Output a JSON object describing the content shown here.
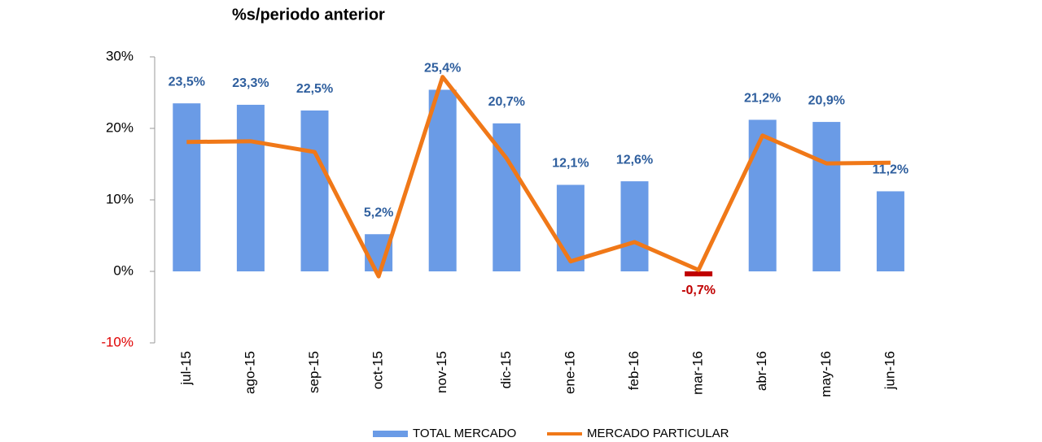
{
  "chart_data": {
    "type": "bar",
    "title": "%s/periodo anterior",
    "categories": [
      "jul-15",
      "ago-15",
      "sep-15",
      "oct-15",
      "nov-15",
      "dic-15",
      "ene-16",
      "feb-16",
      "mar-16",
      "abr-16",
      "may-16",
      "jun-16"
    ],
    "series": [
      {
        "name": "TOTAL MERCADO",
        "type": "bar",
        "color": "#6a9be6",
        "negative_color": "#c00000",
        "values": [
          23.5,
          23.3,
          22.5,
          5.2,
          25.4,
          20.7,
          12.1,
          12.6,
          -0.7,
          21.2,
          20.9,
          11.2
        ],
        "value_labels": [
          "23,5%",
          "23,3%",
          "22,5%",
          "5,2%",
          "25,4%",
          "20,7%",
          "12,1%",
          "12,6%",
          "-0,7%",
          "21,2%",
          "20,9%",
          "11,2%"
        ]
      },
      {
        "name": "MERCADO PARTICULAR",
        "type": "line",
        "color": "#f07818",
        "values": [
          18.1,
          18.2,
          16.7,
          -0.7,
          27.2,
          15.8,
          1.4,
          4.1,
          0.2,
          19.0,
          15.1,
          15.2
        ]
      }
    ],
    "ylim": [
      -10,
      30
    ],
    "yticks": [
      {
        "value": -10,
        "label": "-10%"
      },
      {
        "value": 0,
        "label": "0%"
      },
      {
        "value": 10,
        "label": "10%"
      },
      {
        "value": 20,
        "label": "20%"
      },
      {
        "value": 30,
        "label": "30%"
      }
    ],
    "grid": false,
    "legend": "bottom"
  }
}
